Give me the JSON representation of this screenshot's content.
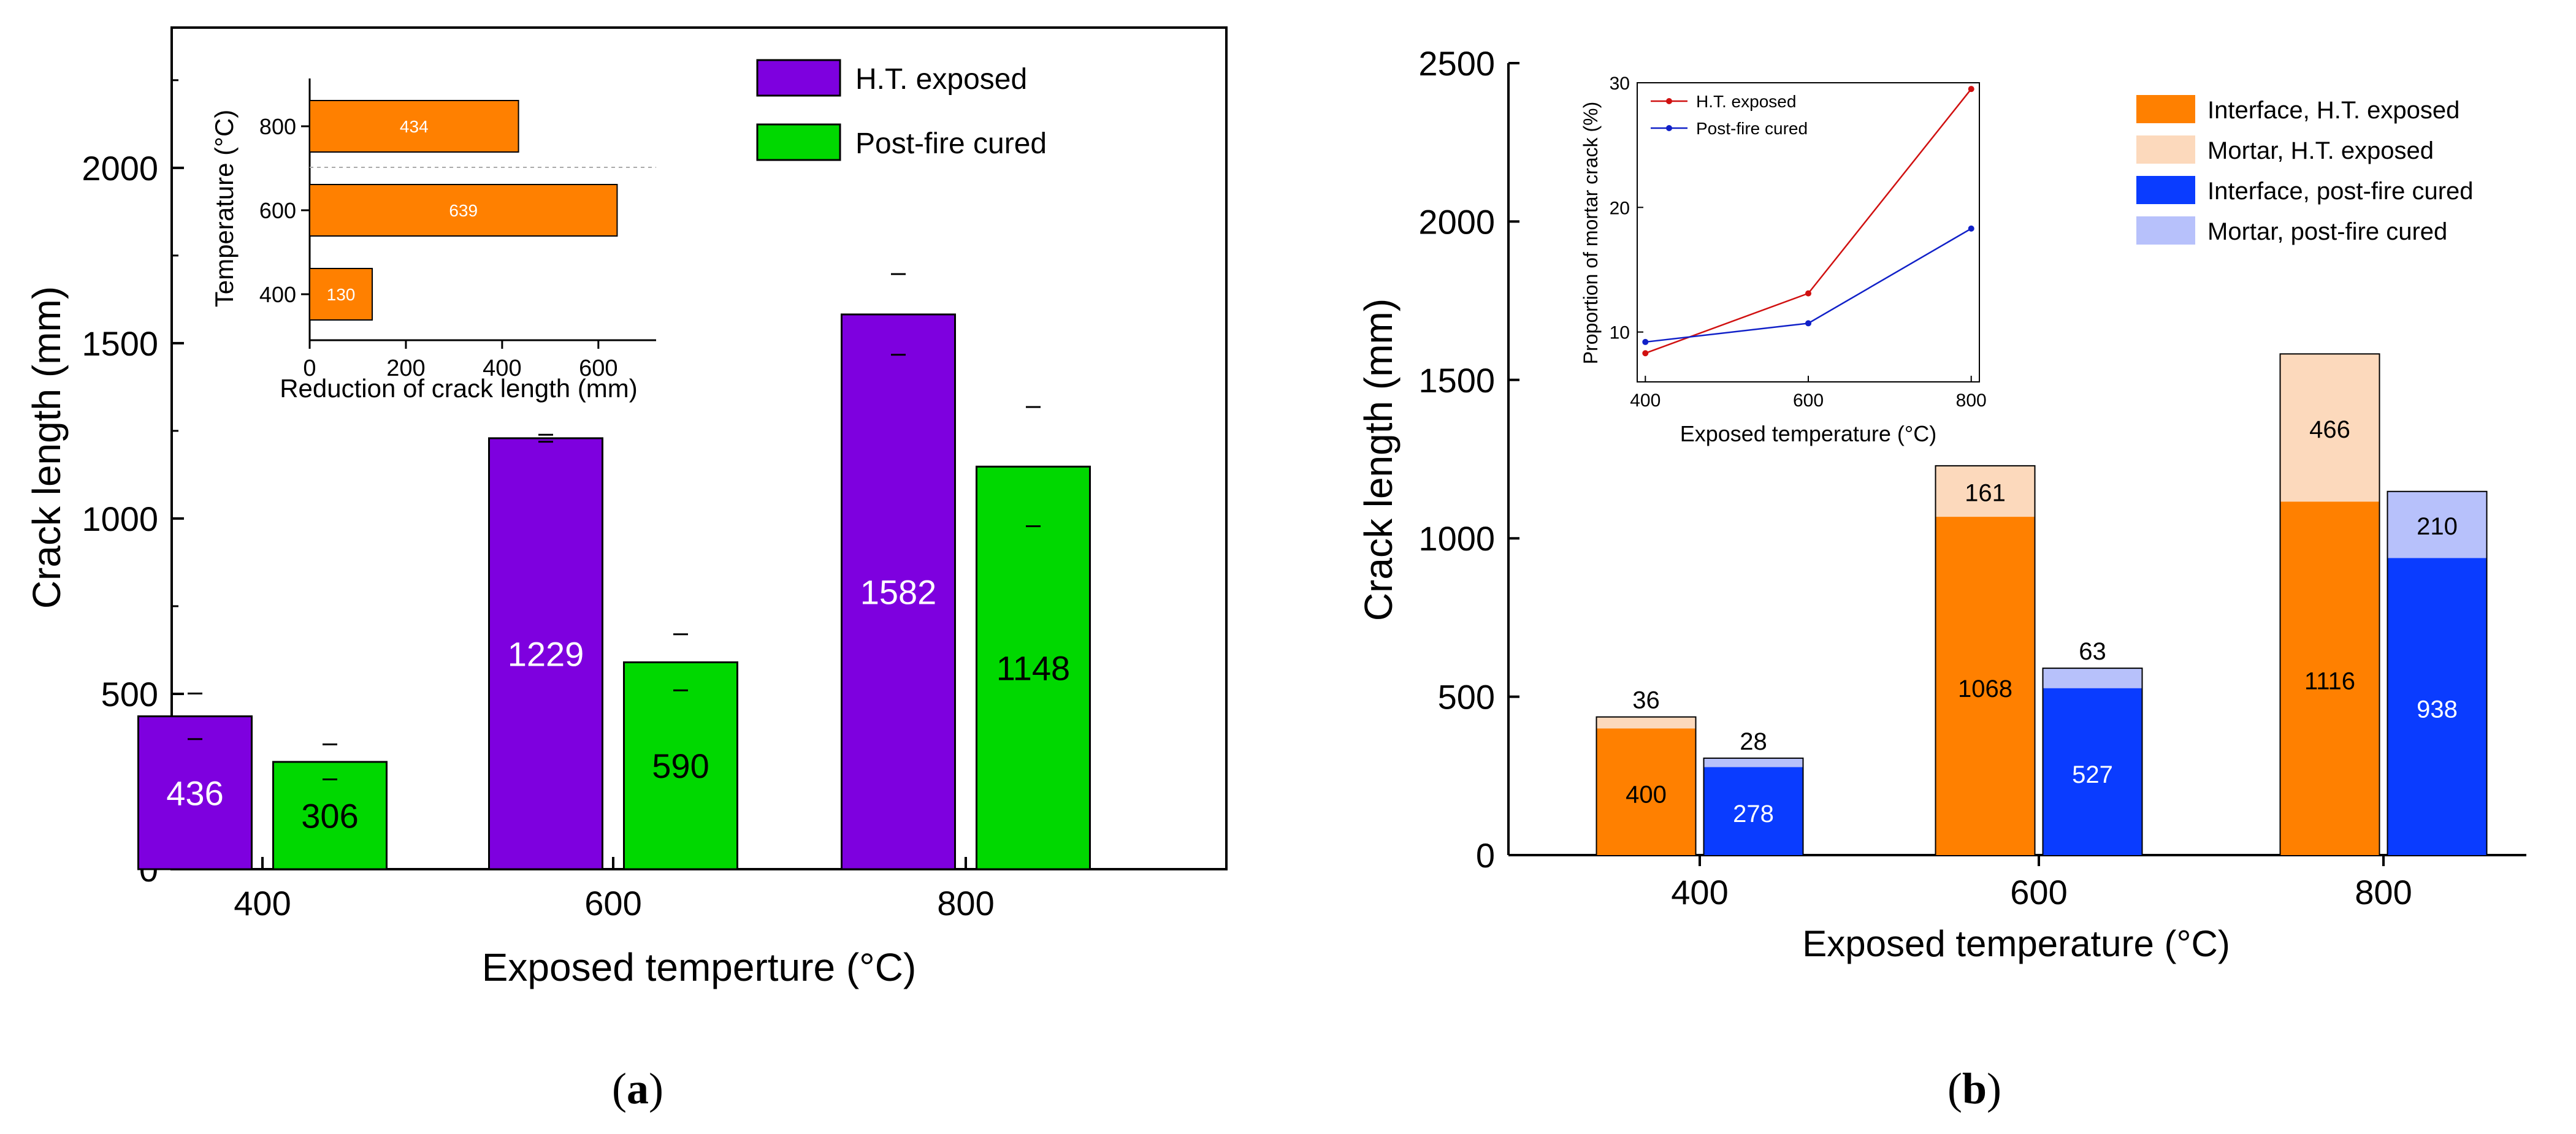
{
  "panels": {
    "a_label": "(a)",
    "b_label": "(b)",
    "label_a_letter": "a",
    "label_b_letter": "b"
  },
  "chart_data": [
    {
      "id": "a-main",
      "type": "bar",
      "xlabel": "Exposed temperture (°C)",
      "ylabel": "Crack length (mm)",
      "categories": [
        "400",
        "600",
        "800"
      ],
      "ylim": [
        0,
        2400
      ],
      "yticks": [
        0,
        500,
        1000,
        1500,
        2000
      ],
      "series": [
        {
          "name": "H.T. exposed",
          "color": "#7e00df",
          "label_color": "#ffffff",
          "values": [
            436,
            1229,
            1582
          ],
          "error": [
            65,
            10,
            115
          ]
        },
        {
          "name": "Post-fire cured",
          "color": "#00d800",
          "label_color": "#000000",
          "values": [
            306,
            590,
            1148
          ],
          "error": [
            50,
            80,
            170
          ]
        }
      ],
      "legend_position": "top-right",
      "grid": false
    },
    {
      "id": "a-inset",
      "type": "bar",
      "orientation": "horizontal",
      "xlabel": "Reduction of crack length (mm)",
      "ylabel": "Temperature (°C)",
      "categories": [
        "400",
        "600",
        "800"
      ],
      "values": [
        130,
        639,
        434
      ],
      "xlim": [
        0,
        720
      ],
      "xticks": [
        0,
        200,
        400,
        600
      ],
      "color": "#ff8000"
    },
    {
      "id": "b-main",
      "type": "bar",
      "stacked": true,
      "xlabel": "Exposed temperature (°C)",
      "ylabel": "Crack length (mm)",
      "categories": [
        "400",
        "600",
        "800"
      ],
      "ylim": [
        0,
        2500
      ],
      "yticks": [
        0,
        500,
        1000,
        1500,
        2000,
        2500
      ],
      "series": [
        {
          "name": "Interface, H.T. exposed",
          "group": "H.T.",
          "color": "#ff8000",
          "values": [
            400,
            1068,
            1116
          ]
        },
        {
          "name": "Mortar, H.T. exposed",
          "group": "H.T.",
          "color": "#fcd9bc",
          "values": [
            36,
            161,
            466
          ]
        },
        {
          "name": "Interface, post-fire cured",
          "group": "PF",
          "color": "#0a3cff",
          "values": [
            278,
            527,
            938
          ]
        },
        {
          "name": "Mortar, post-fire cured",
          "group": "PF",
          "color": "#b7c1fb",
          "values": [
            28,
            63,
            210
          ]
        }
      ],
      "legend_position": "top-right",
      "grid": false
    },
    {
      "id": "b-inset",
      "type": "line",
      "xlabel": "Exposed temperature (°C)",
      "ylabel": "Proportion of mortar crack (%)",
      "x": [
        400,
        600,
        800
      ],
      "xticks": [
        400,
        600,
        800
      ],
      "xlim": [
        390,
        810
      ],
      "ylim": [
        6,
        30
      ],
      "yticks": [
        10,
        20,
        30
      ],
      "series": [
        {
          "name": "H.T. exposed",
          "color": "#d01010",
          "values": [
            8.3,
            13.1,
            29.5
          ]
        },
        {
          "name": "Post-fire cured",
          "color": "#1020c8",
          "values": [
            9.2,
            10.7,
            18.3
          ]
        }
      ],
      "legend_position": "top-left"
    }
  ]
}
